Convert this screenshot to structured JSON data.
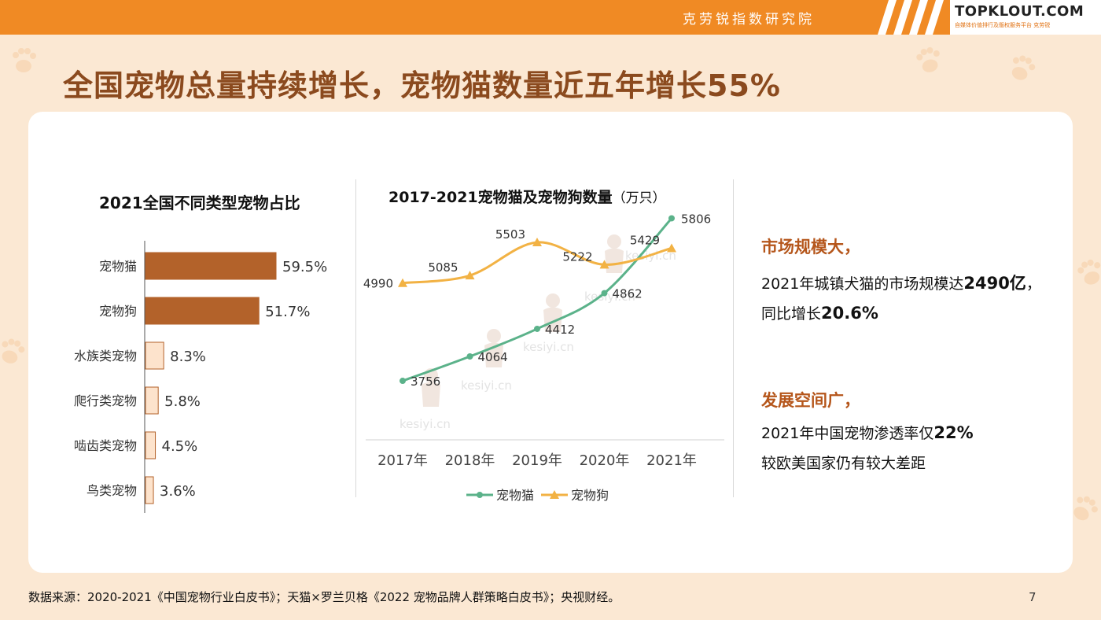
{
  "header": {
    "org_name": "克劳锐指数研究院",
    "logo_text": "TOPKLOUT.COM",
    "logo_subtext": "自媒体价值排行及版权服务平台 克劳锐",
    "bar_color": "#f08a24"
  },
  "page_title": "全国宠物总量持续增长，宠物猫数量近五年增长55%",
  "left_chart_title": "2021全国不同类型宠物占比",
  "mid_chart_title": "2017-2021宠物猫及宠物狗数量",
  "mid_chart_unit": "（万只）",
  "watermark": "kesiyi.cn",
  "chart_data": [
    {
      "type": "bar",
      "orientation": "horizontal",
      "title": "2021全国不同类型宠物占比",
      "categories": [
        "宠物猫",
        "宠物狗",
        "水族类宠物",
        "爬行类宠物",
        "啮齿类宠物",
        "鸟类宠物"
      ],
      "values": [
        59.5,
        51.7,
        8.3,
        5.8,
        4.5,
        3.6
      ],
      "labels": [
        "59.5%",
        "51.7%",
        "8.3%",
        "5.8%",
        "4.5%",
        "3.6%"
      ],
      "colors": [
        "#b3622a",
        "#b3622a",
        "#fde3cc",
        "#fde3cc",
        "#fde3cc",
        "#fde3cc"
      ],
      "bar_edge_color": "#b3622a",
      "xlim": [
        0,
        100
      ]
    },
    {
      "type": "line",
      "title": "2017-2021宠物猫及宠物狗数量",
      "unit": "（万只）",
      "x": [
        "2017年",
        "2018年",
        "2019年",
        "2020年",
        "2021年"
      ],
      "series": [
        {
          "name": "宠物猫",
          "values": [
            3756,
            4064,
            4412,
            4862,
            5806
          ],
          "color": "#5bb28a",
          "marker": "circle"
        },
        {
          "name": "宠物狗",
          "values": [
            4990,
            5085,
            5503,
            5222,
            5429
          ],
          "color": "#f2b244",
          "marker": "triangle"
        }
      ],
      "ylim": [
        3300,
        5900
      ],
      "legend_position": "bottom",
      "grid": false
    }
  ],
  "info": {
    "block1_title": "市场规模大，",
    "block1_line1_prefix": "2021年城镇犬猫的市场规模达",
    "block1_line1_value": "2490亿",
    "block1_line1_suffix": "，",
    "block1_line2_prefix": "同比增长",
    "block1_line2_value": "20.6%",
    "block2_title": "发展空间广，",
    "block2_line1_prefix": "2021年中国宠物渗透率仅",
    "block2_line1_value": "22%",
    "block2_line2": "较欧美国家仍有较大差距"
  },
  "footer": {
    "source": "数据来源：2020-2021《中国宠物行业白皮书》；天猫×罗兰贝格《2022 宠物品牌人群策略白皮书》；央视财经。",
    "page_number": "7"
  }
}
